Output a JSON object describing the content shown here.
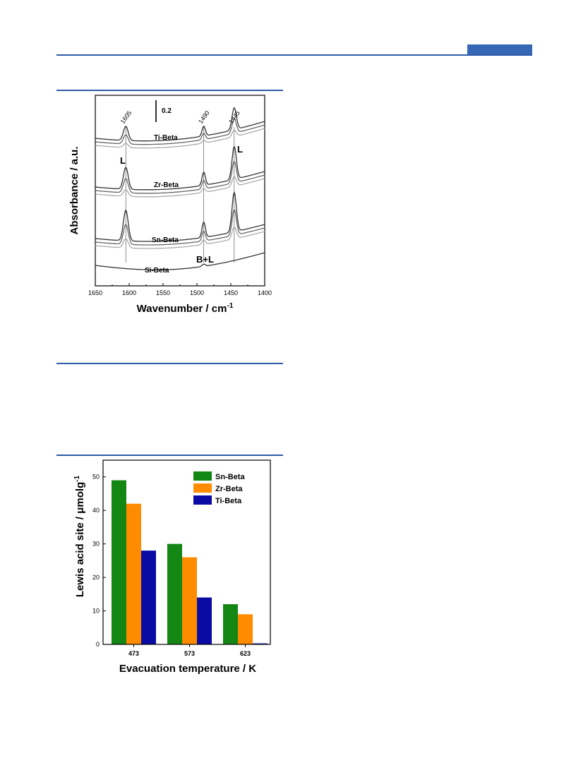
{
  "page": {
    "accent_color": "#2d5ca8"
  },
  "chart_data": [
    {
      "type": "line",
      "xlabel": "Wavenumber / cm",
      "xlabel_superscript": "-1",
      "ylabel": "Absorbance / a.u.",
      "xlim": [
        1650,
        1400
      ],
      "x_reversed": true,
      "x_ticks": [
        1650,
        1600,
        1550,
        1500,
        1450,
        1400
      ],
      "y_ticks_shown": false,
      "scale_bar_label": "0.2",
      "peak_labels": [
        "1605",
        "1490",
        "1445"
      ],
      "peak_positions": [
        1605,
        1490,
        1445
      ],
      "band_labels": [
        "L",
        "L",
        "B+L"
      ],
      "series": [
        {
          "name": "Ti-Beta",
          "colors": [
            "#333333",
            "#666666",
            "#aaaaaa"
          ],
          "peak_heights": [
            0.13,
            0.09,
            0.2
          ]
        },
        {
          "name": "Zr-Beta",
          "colors": [
            "#333333",
            "#666666",
            "#aaaaaa"
          ],
          "peak_heights": [
            0.2,
            0.12,
            0.3
          ]
        },
        {
          "name": "Sn-Beta",
          "colors": [
            "#333333",
            "#666666",
            "#aaaaaa"
          ],
          "peak_heights": [
            0.28,
            0.14,
            0.36
          ]
        },
        {
          "name": "Si-Beta",
          "colors": [
            "#333333"
          ],
          "peak_heights": [
            0,
            0.02,
            0
          ]
        }
      ]
    },
    {
      "type": "bar",
      "xlabel": "Evacuation temperature / K",
      "ylabel": "Lewis acid site / μmolg",
      "ylabel_superscript": "-1",
      "categories": [
        "473",
        "573",
        "623"
      ],
      "ylim": [
        0,
        55
      ],
      "y_ticks": [
        0,
        10,
        20,
        30,
        40,
        50
      ],
      "legend_position": "top-right",
      "series": [
        {
          "name": "Sn-Beta",
          "color": "#138613",
          "values": [
            49,
            30,
            12
          ]
        },
        {
          "name": "Zr-Beta",
          "color": "#ff8c00",
          "values": [
            42,
            26,
            9
          ]
        },
        {
          "name": "Ti-Beta",
          "color": "#0a0aa5",
          "values": [
            28,
            14,
            0.3
          ]
        }
      ]
    }
  ]
}
